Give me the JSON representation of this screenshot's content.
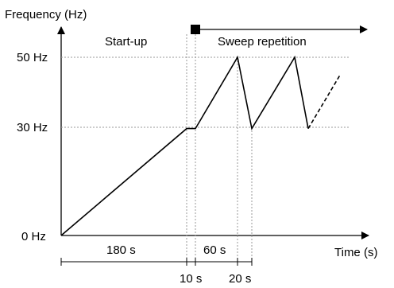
{
  "chart_data": {
    "type": "line",
    "ylabel": "Frequency (Hz)",
    "xlabel": "Time (s)",
    "y_ticks": [
      "50 Hz",
      "30 Hz",
      "0 Hz"
    ],
    "y_values": [
      50,
      30,
      0
    ],
    "phases": {
      "startup_label": "Start-up",
      "sweep_label": "Sweep repetition"
    },
    "durations": {
      "ramp": "180 s",
      "hold": "10 s",
      "sweep_up": "60 s",
      "sweep_down": "20 s"
    },
    "series": [
      {
        "points": [
          {
            "t": 0,
            "f": 0
          },
          {
            "t": 180,
            "f": 30
          },
          {
            "t": 190,
            "f": 30
          },
          {
            "t": 250,
            "f": 50
          },
          {
            "t": 270,
            "f": 30
          },
          {
            "t": 330,
            "f": 50
          },
          {
            "t": 350,
            "f": 30
          }
        ],
        "continuation": [
          {
            "t": 350,
            "f": 30
          },
          {
            "t": 385,
            "f": 45
          }
        ]
      }
    ]
  }
}
